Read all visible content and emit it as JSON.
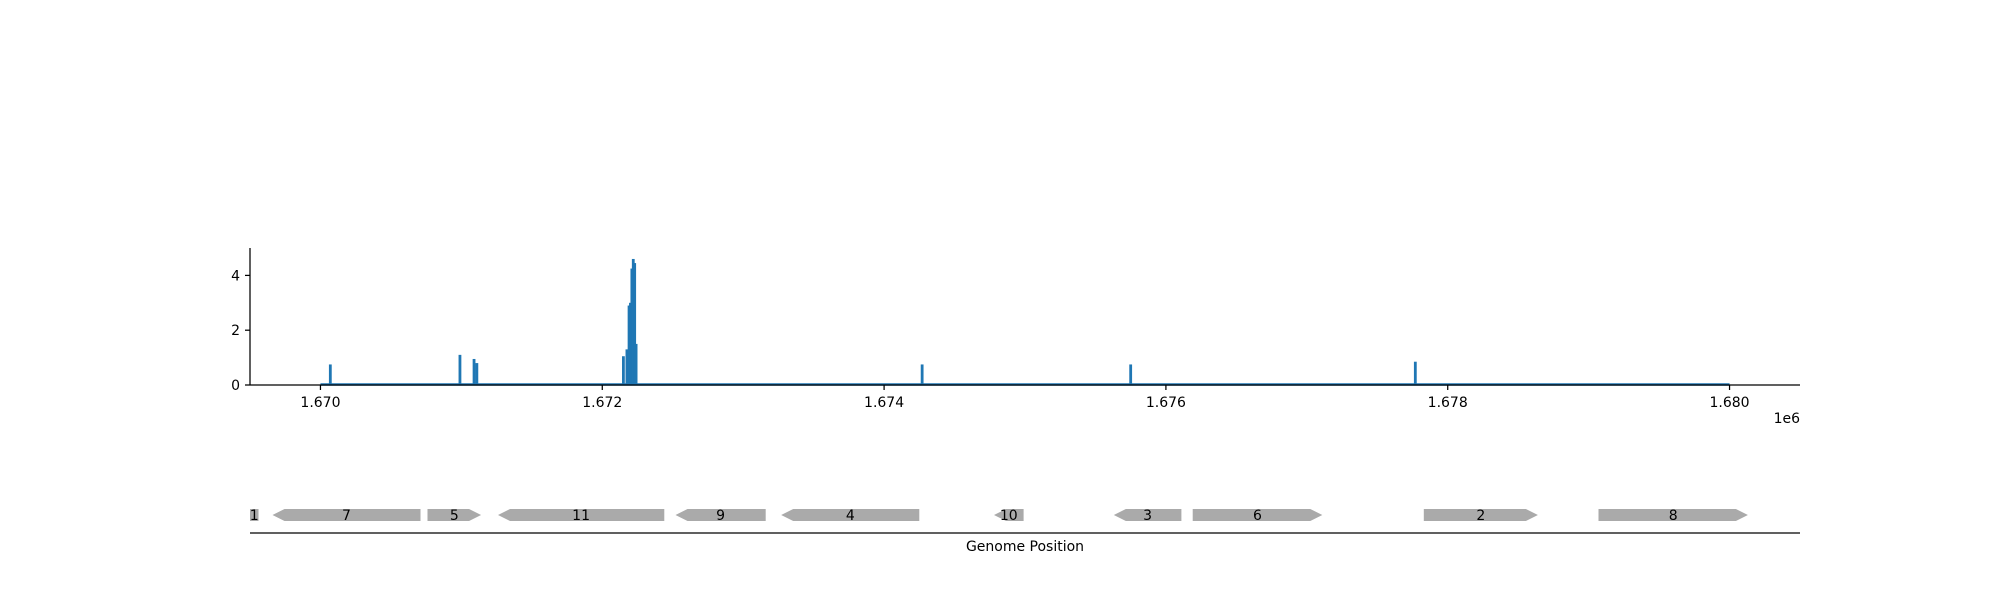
{
  "chart_data": [
    {
      "type": "bar",
      "title": "",
      "xlabel": "",
      "ylabel": "",
      "x_offset_label": "1e6",
      "xlim": [
        1669500,
        1680500
      ],
      "ylim": [
        0,
        5
      ],
      "xticks": [
        1670000,
        1672000,
        1674000,
        1676000,
        1678000,
        1680000
      ],
      "xtick_labels": [
        "1.670",
        "1.672",
        "1.674",
        "1.676",
        "1.678",
        "1.680"
      ],
      "yticks": [
        0,
        2,
        4
      ],
      "ytick_labels": [
        "0",
        "2",
        "4"
      ],
      "baseline": {
        "from": 1670000,
        "to": 1680000,
        "value": 0.02
      },
      "series": [
        {
          "color": "#1f77b4",
          "points": [
            {
              "x": 1670070,
              "y": 0.75
            },
            {
              "x": 1670990,
              "y": 1.1
            },
            {
              "x": 1671090,
              "y": 0.95
            },
            {
              "x": 1671110,
              "y": 0.8
            },
            {
              "x": 1672150,
              "y": 1.05
            },
            {
              "x": 1672175,
              "y": 1.3
            },
            {
              "x": 1672190,
              "y": 2.9
            },
            {
              "x": 1672200,
              "y": 3.0
            },
            {
              "x": 1672210,
              "y": 4.25
            },
            {
              "x": 1672220,
              "y": 4.6
            },
            {
              "x": 1672230,
              "y": 4.45
            },
            {
              "x": 1672240,
              "y": 1.5
            },
            {
              "x": 1674270,
              "y": 0.75
            },
            {
              "x": 1675750,
              "y": 0.75
            },
            {
              "x": 1677770,
              "y": 0.85
            }
          ]
        }
      ],
      "grid": false
    },
    {
      "type": "gene-track",
      "xlabel": "Genome Position",
      "xlim": [
        1669500,
        1680500
      ],
      "feature_color": "#aaaaaa",
      "features": [
        {
          "label": "1",
          "start": 1669500,
          "end": 1669560,
          "strand": "none"
        },
        {
          "label": "7",
          "start": 1669660,
          "end": 1670710,
          "strand": "-"
        },
        {
          "label": "5",
          "start": 1670760,
          "end": 1671140,
          "strand": "+"
        },
        {
          "label": "11",
          "start": 1671260,
          "end": 1672440,
          "strand": "-"
        },
        {
          "label": "9",
          "start": 1672520,
          "end": 1673160,
          "strand": "-"
        },
        {
          "label": "4",
          "start": 1673270,
          "end": 1674250,
          "strand": "-"
        },
        {
          "label": "10",
          "start": 1674780,
          "end": 1674990,
          "strand": "-"
        },
        {
          "label": "3",
          "start": 1675630,
          "end": 1676110,
          "strand": "-"
        },
        {
          "label": "6",
          "start": 1676190,
          "end": 1677110,
          "strand": "+"
        },
        {
          "label": "2",
          "start": 1677830,
          "end": 1678640,
          "strand": "+"
        },
        {
          "label": "8",
          "start": 1679070,
          "end": 1680130,
          "strand": "+"
        }
      ]
    }
  ]
}
